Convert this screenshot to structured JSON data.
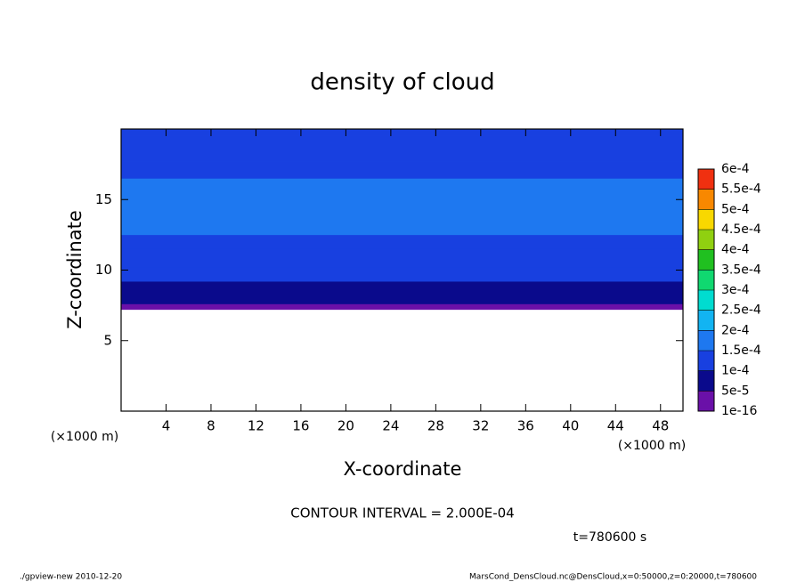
{
  "chart_data": {
    "type": "contour",
    "title": "density of cloud",
    "xlabel": "X-coordinate",
    "ylabel": "Z-coordinate",
    "x_unit": "(×1000 m)",
    "y_unit": "(×1000 m)",
    "xlim": [
      0,
      50
    ],
    "ylim": [
      0,
      20
    ],
    "xticks": [
      4,
      8,
      12,
      16,
      20,
      24,
      28,
      32,
      36,
      40,
      44,
      48
    ],
    "yticks": [
      5,
      10,
      15
    ],
    "z_edges": [
      7.2,
      7.6,
      8.4,
      9.2,
      10.2,
      11.5,
      12.5,
      16.5,
      17.7,
      19.5,
      20
    ],
    "values": [
      2e-05,
      6e-05,
      8e-05,
      0.000105,
      0.00012,
      0.00014,
      0.000155,
      0.00013,
      0.00011,
      0.00012
    ],
    "levels": [
      {
        "value": 1e-16,
        "label": "1e-16"
      },
      {
        "value": 5e-05,
        "label": "5e-5"
      },
      {
        "value": 0.0001,
        "label": "1e-4"
      },
      {
        "value": 0.00015,
        "label": "1.5e-4"
      },
      {
        "value": 0.0002,
        "label": "2e-4"
      },
      {
        "value": 0.00025,
        "label": "2.5e-4"
      },
      {
        "value": 0.0003,
        "label": "3e-4"
      },
      {
        "value": 0.00035,
        "label": "3.5e-4"
      },
      {
        "value": 0.0004,
        "label": "4e-4"
      },
      {
        "value": 0.00045,
        "label": "4.5e-4"
      },
      {
        "value": 0.0005,
        "label": "5e-4"
      },
      {
        "value": 0.00055,
        "label": "5.5e-4"
      },
      {
        "value": 0.0006,
        "label": "6e-4"
      }
    ],
    "colors": [
      "#6a10a8",
      "#0a0a8c",
      "#1840e0",
      "#1e78f0",
      "#12b4f2",
      "#00dcd0",
      "#10d870",
      "#20c020",
      "#90d010",
      "#f8d800",
      "#f88800",
      "#f03010",
      "#f89090"
    ],
    "annotation": "CONTOUR INTERVAL = 2.000E-04",
    "time_label": "t=780600 s",
    "footer_left": "./gpview-new  2010-12-20",
    "footer_right": "MarsCond_DensCloud.nc@DensCloud,x=0:50000,z=0:20000,t=780600"
  }
}
